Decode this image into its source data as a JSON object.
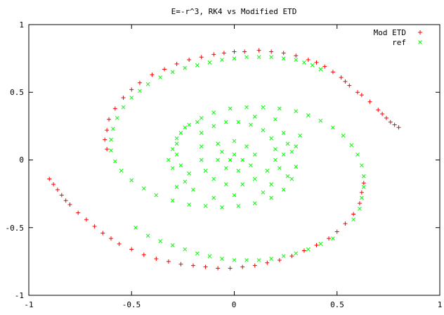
{
  "chart_data": {
    "type": "scatter",
    "title": "E=-r^3, RK4 vs Modified ETD",
    "xlabel": "",
    "ylabel": "",
    "xlim": [
      -1,
      1
    ],
    "ylim": [
      -1,
      1
    ],
    "x_ticks": [
      "-1",
      "-0.5",
      "0",
      "0.5",
      "1"
    ],
    "y_ticks": [
      "1",
      "0.5",
      "0",
      "-0.5",
      "-1"
    ],
    "legend_position": "top-right",
    "grid": false,
    "series": [
      {
        "name": "Mod ETD",
        "marker": "+",
        "color": "#ff0000",
        "points": [
          [
            0.8,
            0.24
          ],
          [
            0.78,
            0.26
          ],
          [
            0.76,
            0.28
          ],
          [
            0.74,
            0.31
          ],
          [
            0.72,
            0.34
          ],
          [
            0.7,
            0.37
          ],
          [
            0.66,
            0.43
          ],
          [
            0.62,
            0.48
          ],
          [
            0.6,
            0.5
          ],
          [
            0.56,
            0.55
          ],
          [
            0.54,
            0.58
          ],
          [
            0.52,
            0.61
          ],
          [
            0.48,
            0.65
          ],
          [
            0.44,
            0.69
          ],
          [
            0.4,
            0.72
          ],
          [
            0.36,
            0.74
          ],
          [
            0.3,
            0.77
          ],
          [
            0.24,
            0.79
          ],
          [
            0.18,
            0.8
          ],
          [
            0.12,
            0.81
          ],
          [
            0.05,
            0.8
          ],
          [
            0.0,
            0.8
          ],
          [
            -0.05,
            0.79
          ],
          [
            -0.1,
            0.78
          ],
          [
            -0.16,
            0.76
          ],
          [
            -0.22,
            0.74
          ],
          [
            -0.28,
            0.71
          ],
          [
            -0.34,
            0.67
          ],
          [
            -0.4,
            0.63
          ],
          [
            -0.46,
            0.57
          ],
          [
            -0.5,
            0.52
          ],
          [
            -0.54,
            0.46
          ],
          [
            -0.58,
            0.38
          ],
          [
            -0.61,
            0.3
          ],
          [
            -0.62,
            0.22
          ],
          [
            -0.63,
            0.15
          ],
          [
            -0.62,
            0.08
          ],
          [
            -0.9,
            -0.14
          ],
          [
            -0.88,
            -0.18
          ],
          [
            -0.86,
            -0.22
          ],
          [
            -0.84,
            -0.26
          ],
          [
            -0.82,
            -0.3
          ],
          [
            -0.8,
            -0.33
          ],
          [
            -0.76,
            -0.39
          ],
          [
            -0.72,
            -0.44
          ],
          [
            -0.68,
            -0.49
          ],
          [
            -0.64,
            -0.54
          ],
          [
            -0.6,
            -0.58
          ],
          [
            -0.56,
            -0.62
          ],
          [
            -0.5,
            -0.66
          ],
          [
            -0.44,
            -0.7
          ],
          [
            -0.38,
            -0.73
          ],
          [
            -0.32,
            -0.75
          ],
          [
            -0.26,
            -0.77
          ],
          [
            -0.2,
            -0.78
          ],
          [
            -0.14,
            -0.79
          ],
          [
            -0.08,
            -0.8
          ],
          [
            -0.02,
            -0.8
          ],
          [
            0.04,
            -0.79
          ],
          [
            0.1,
            -0.78
          ],
          [
            0.16,
            -0.76
          ],
          [
            0.22,
            -0.74
          ],
          [
            0.28,
            -0.71
          ],
          [
            0.34,
            -0.67
          ],
          [
            0.4,
            -0.63
          ],
          [
            0.46,
            -0.58
          ],
          [
            0.5,
            -0.53
          ],
          [
            0.54,
            -0.47
          ],
          [
            0.58,
            -0.4
          ],
          [
            0.61,
            -0.32
          ],
          [
            0.62,
            -0.24
          ],
          [
            0.63,
            -0.17
          ]
        ]
      },
      {
        "name": "ref",
        "marker": "x",
        "color": "#00ff00",
        "points": [
          [
            0.42,
            0.67
          ],
          [
            0.38,
            0.7
          ],
          [
            0.34,
            0.72
          ],
          [
            0.3,
            0.74
          ],
          [
            0.24,
            0.75
          ],
          [
            0.18,
            0.76
          ],
          [
            0.12,
            0.76
          ],
          [
            0.06,
            0.76
          ],
          [
            0.0,
            0.75
          ],
          [
            -0.06,
            0.74
          ],
          [
            -0.12,
            0.72
          ],
          [
            -0.18,
            0.7
          ],
          [
            -0.24,
            0.68
          ],
          [
            -0.3,
            0.65
          ],
          [
            -0.36,
            0.61
          ],
          [
            -0.42,
            0.56
          ],
          [
            -0.46,
            0.51
          ],
          [
            -0.5,
            0.46
          ],
          [
            -0.54,
            0.39
          ],
          [
            -0.57,
            0.31
          ],
          [
            -0.59,
            0.23
          ],
          [
            -0.6,
            0.15
          ],
          [
            -0.6,
            0.07
          ],
          [
            -0.58,
            -0.01
          ],
          [
            -0.55,
            -0.08
          ],
          [
            -0.5,
            -0.15
          ],
          [
            -0.44,
            -0.21
          ],
          [
            -0.38,
            -0.26
          ],
          [
            -0.3,
            -0.3
          ],
          [
            -0.22,
            -0.33
          ],
          [
            -0.14,
            -0.34
          ],
          [
            -0.06,
            -0.35
          ],
          [
            0.02,
            -0.34
          ],
          [
            0.1,
            -0.32
          ],
          [
            0.18,
            -0.28
          ],
          [
            0.24,
            -0.22
          ],
          [
            0.28,
            -0.14
          ],
          [
            0.3,
            -0.05
          ],
          [
            0.48,
            -0.58
          ],
          [
            0.42,
            -0.62
          ],
          [
            0.36,
            -0.66
          ],
          [
            0.3,
            -0.69
          ],
          [
            0.24,
            -0.71
          ],
          [
            0.18,
            -0.73
          ],
          [
            0.12,
            -0.74
          ],
          [
            0.06,
            -0.74
          ],
          [
            0.0,
            -0.74
          ],
          [
            -0.06,
            -0.73
          ],
          [
            -0.12,
            -0.71
          ],
          [
            -0.18,
            -0.69
          ],
          [
            -0.24,
            -0.66
          ],
          [
            -0.3,
            -0.63
          ],
          [
            -0.36,
            -0.6
          ],
          [
            -0.42,
            -0.56
          ],
          [
            -0.48,
            -0.5
          ],
          [
            0.58,
            -0.44
          ],
          [
            0.61,
            -0.36
          ],
          [
            0.62,
            -0.28
          ],
          [
            0.63,
            -0.2
          ],
          [
            0.63,
            -0.12
          ],
          [
            0.62,
            -0.04
          ],
          [
            0.6,
            0.04
          ],
          [
            0.57,
            0.11
          ],
          [
            0.53,
            0.18
          ],
          [
            0.48,
            0.24
          ],
          [
            0.42,
            0.29
          ],
          [
            0.36,
            0.33
          ],
          [
            0.3,
            0.36
          ],
          [
            0.22,
            0.38
          ],
          [
            0.14,
            0.39
          ],
          [
            0.06,
            0.39
          ],
          [
            -0.02,
            0.38
          ],
          [
            -0.1,
            0.35
          ],
          [
            -0.16,
            0.31
          ],
          [
            -0.22,
            0.26
          ],
          [
            -0.26,
            0.2
          ],
          [
            -0.28,
            0.12
          ],
          [
            -0.28,
            0.04
          ],
          [
            -0.26,
            -0.04
          ],
          [
            -0.22,
            -0.1
          ],
          [
            -0.16,
            0.2
          ],
          [
            -0.1,
            0.25
          ],
          [
            -0.04,
            0.28
          ],
          [
            0.02,
            0.28
          ],
          [
            0.08,
            0.26
          ],
          [
            0.14,
            0.22
          ],
          [
            0.18,
            0.16
          ],
          [
            0.2,
            0.08
          ],
          [
            0.2,
            0.0
          ],
          [
            0.16,
            -0.08
          ],
          [
            0.1,
            -0.14
          ],
          [
            0.04,
            -0.18
          ],
          [
            -0.04,
            -0.18
          ],
          [
            -0.1,
            -0.14
          ],
          [
            -0.14,
            -0.08
          ],
          [
            -0.16,
            0.0
          ],
          [
            -0.16,
            0.1
          ],
          [
            -0.08,
            0.12
          ],
          [
            0.0,
            0.14
          ],
          [
            0.06,
            0.1
          ],
          [
            0.1,
            0.04
          ],
          [
            0.08,
            -0.04
          ],
          [
            0.02,
            -0.08
          ],
          [
            -0.04,
            -0.06
          ],
          [
            -0.08,
            0.0
          ],
          [
            -0.06,
            0.06
          ],
          [
            0.0,
            0.04
          ],
          [
            0.04,
            0.0
          ],
          [
            -0.02,
            0.0
          ],
          [
            0.26,
            0.12
          ],
          [
            0.28,
            0.06
          ],
          [
            0.24,
            0.04
          ],
          [
            0.22,
            -0.06
          ],
          [
            0.18,
            -0.18
          ],
          [
            0.14,
            -0.24
          ],
          [
            0.26,
            -0.12
          ],
          [
            0.3,
            0.1
          ],
          [
            0.32,
            0.18
          ],
          [
            0.24,
            0.2
          ],
          [
            -0.28,
            0.16
          ],
          [
            -0.3,
            0.08
          ],
          [
            -0.32,
            0.0
          ],
          [
            -0.3,
            -0.06
          ],
          [
            -0.24,
            -0.16
          ],
          [
            -0.2,
            -0.22
          ],
          [
            -0.28,
            -0.2
          ],
          [
            -0.18,
            0.28
          ],
          [
            -0.24,
            0.24
          ],
          [
            0.2,
            0.3
          ],
          [
            0.1,
            0.32
          ],
          [
            -0.1,
            -0.28
          ],
          [
            0.0,
            -0.26
          ]
        ]
      }
    ]
  }
}
